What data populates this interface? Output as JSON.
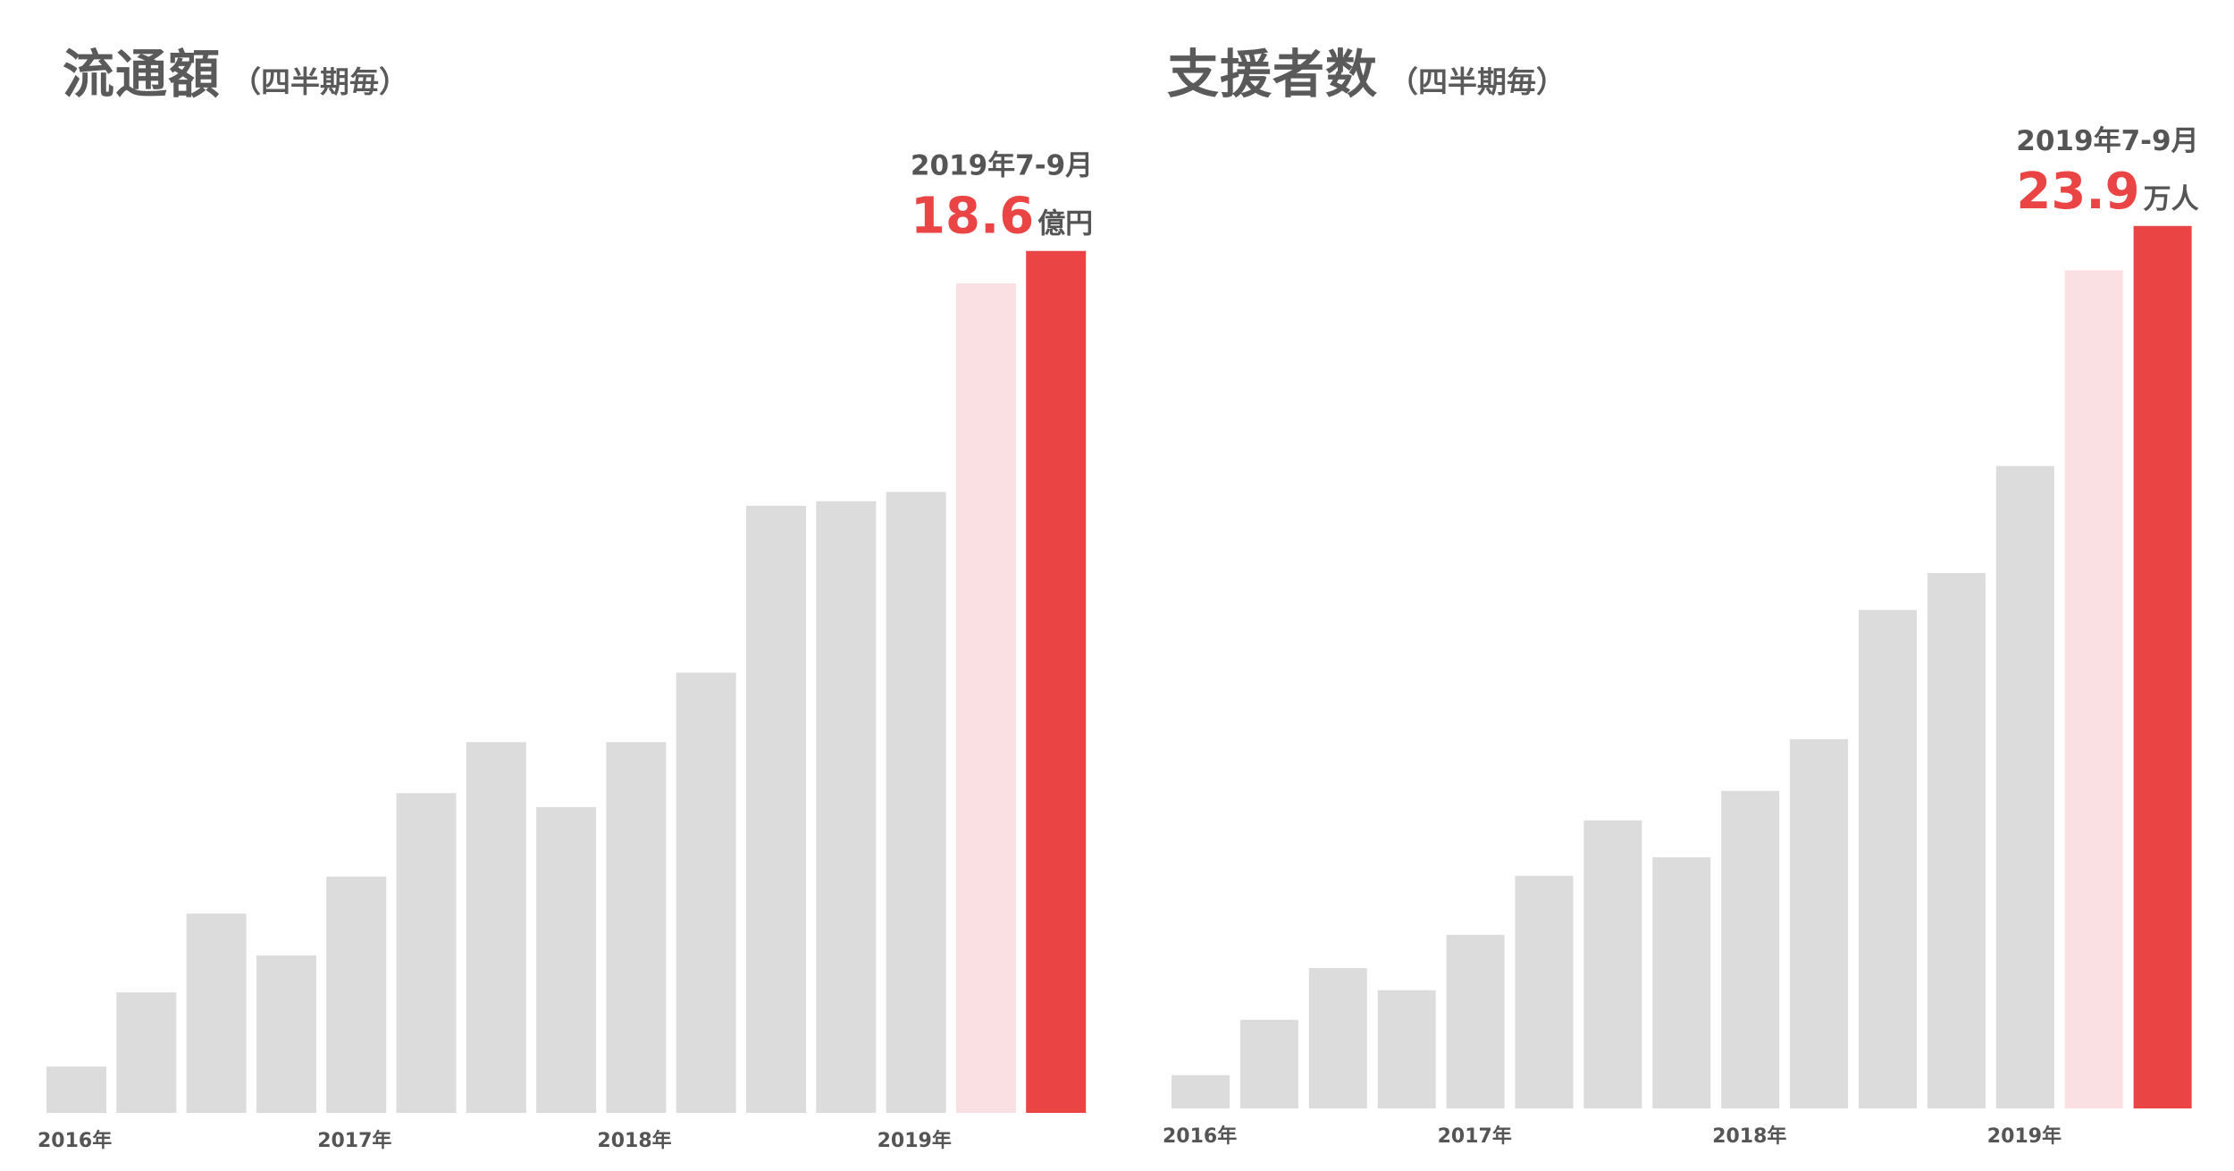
{
  "colors": {
    "bar": "#dcdcdc",
    "previous_highlight": "#fae0e2",
    "highlight": "#ea4444",
    "text": "#555555"
  },
  "chart_data": [
    {
      "type": "bar",
      "title": "流通額",
      "subtitle": "（四半期毎）",
      "xlabel": "",
      "ylabel": "",
      "grid": false,
      "tick_labels": [
        "2016年",
        "2017年",
        "2018年",
        "2019年"
      ],
      "tick_positions": [
        0,
        4,
        8,
        12
      ],
      "categories": [
        "2016 Q1",
        "2016 Q2",
        "2016 Q3",
        "2016 Q4",
        "2017 Q1",
        "2017 Q2",
        "2017 Q3",
        "2017 Q4",
        "2018 Q1",
        "2018 Q2",
        "2018 Q3",
        "2018 Q4",
        "2019 Q1",
        "2019 Q2",
        "2019年7-9月"
      ],
      "values": [
        1.0,
        2.6,
        4.3,
        3.4,
        5.1,
        6.9,
        8.0,
        6.6,
        8.0,
        9.5,
        13.1,
        13.2,
        13.4,
        17.9,
        18.6
      ],
      "ylim": [
        0,
        19
      ],
      "highlight": {
        "index": 14,
        "period": "2019年7-9月",
        "value_label": "18.6",
        "unit": "億円"
      }
    },
    {
      "type": "bar",
      "title": "支援者数",
      "subtitle": "（四半期毎）",
      "xlabel": "",
      "ylabel": "",
      "grid": false,
      "tick_labels": [
        "2016年",
        "2017年",
        "2018年",
        "2019年"
      ],
      "tick_positions": [
        0,
        4,
        8,
        12
      ],
      "categories": [
        "2016 Q1",
        "2016 Q2",
        "2016 Q3",
        "2016 Q4",
        "2017 Q1",
        "2017 Q2",
        "2017 Q3",
        "2017 Q4",
        "2018 Q1",
        "2018 Q2",
        "2018 Q3",
        "2018 Q4",
        "2019 Q1",
        "2019 Q2",
        "2019年7-9月"
      ],
      "values": [
        0.9,
        2.4,
        3.8,
        3.2,
        4.7,
        6.3,
        7.8,
        6.8,
        8.6,
        10.0,
        13.5,
        14.5,
        17.4,
        22.7,
        23.9
      ],
      "ylim": [
        0,
        24.5
      ],
      "highlight": {
        "index": 14,
        "period": "2019年7-9月",
        "value_label": "23.9",
        "unit": "万人"
      }
    }
  ]
}
